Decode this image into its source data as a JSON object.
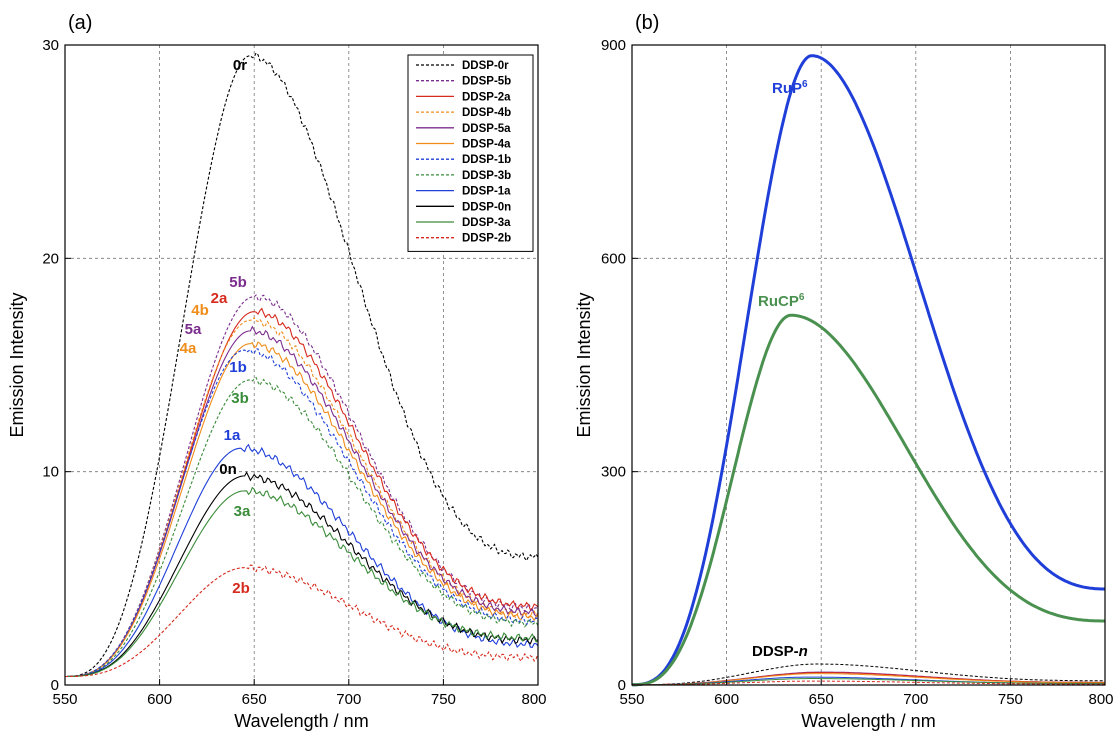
{
  "chart_data": [
    {
      "panel": "(a)",
      "type": "line",
      "xlabel": "Wavelength / nm",
      "ylabel": "Emission Intensity",
      "xlim": [
        550,
        800
      ],
      "ylim": [
        0,
        30
      ],
      "xticks": [
        550,
        600,
        650,
        700,
        750,
        800
      ],
      "yticks": [
        0,
        10,
        20,
        30
      ],
      "grid": true,
      "legend_position": "top-right",
      "series": [
        {
          "name": "DDSP-0r",
          "label": "0r",
          "color": "#000000",
          "dash": true,
          "peak_x": 648,
          "peak_y": 29.5,
          "end_y": 6.0
        },
        {
          "name": "DDSP-5b",
          "label": "5b",
          "color": "#7b2d8e",
          "dash": true,
          "peak_x": 650,
          "peak_y": 18.2,
          "end_y": 3.6
        },
        {
          "name": "DDSP-2a",
          "label": "2a",
          "color": "#d62a1e",
          "dash": false,
          "peak_x": 650,
          "peak_y": 17.5,
          "end_y": 3.7
        },
        {
          "name": "DDSP-4b",
          "label": "4b",
          "color": "#f08c1a",
          "dash": true,
          "peak_x": 648,
          "peak_y": 17.1,
          "end_y": 3.3
        },
        {
          "name": "DDSP-5a",
          "label": "5a",
          "color": "#7b2d8e",
          "dash": false,
          "peak_x": 648,
          "peak_y": 16.6,
          "end_y": 3.4
        },
        {
          "name": "DDSP-4a",
          "label": "4a",
          "color": "#f08c1a",
          "dash": false,
          "peak_x": 648,
          "peak_y": 16.0,
          "end_y": 3.2
        },
        {
          "name": "DDSP-1b",
          "label": "1b",
          "color": "#1f3fd8",
          "dash": true,
          "peak_x": 645,
          "peak_y": 15.7,
          "end_y": 3.0
        },
        {
          "name": "DDSP-3b",
          "label": "3b",
          "color": "#3a8c3a",
          "dash": true,
          "peak_x": 648,
          "peak_y": 14.3,
          "end_y": 2.9
        },
        {
          "name": "DDSP-1a",
          "label": "1a",
          "color": "#1f3fd8",
          "dash": false,
          "peak_x": 643,
          "peak_y": 11.1,
          "end_y": 1.9
        },
        {
          "name": "DDSP-0n",
          "label": "0n",
          "color": "#000000",
          "dash": false,
          "peak_x": 645,
          "peak_y": 9.8,
          "end_y": 2.1
        },
        {
          "name": "DDSP-3a",
          "label": "3a",
          "color": "#3a8c3a",
          "dash": false,
          "peak_x": 645,
          "peak_y": 9.1,
          "end_y": 2.2
        },
        {
          "name": "DDSP-2b",
          "label": "2b",
          "color": "#d62a1e",
          "dash": true,
          "peak_x": 645,
          "peak_y": 5.5,
          "end_y": 1.3
        }
      ]
    },
    {
      "panel": "(b)",
      "type": "line",
      "xlabel": "Wavelength / nm",
      "ylabel": "Emission Intensity",
      "xlim": [
        550,
        800
      ],
      "ylim": [
        0,
        900
      ],
      "xticks": [
        550,
        600,
        650,
        700,
        750,
        800
      ],
      "yticks": [
        0,
        300,
        600,
        900
      ],
      "grid": true,
      "series": [
        {
          "label": "RuP",
          "sup": "6",
          "color": "#1f3fd8",
          "dash": false,
          "width": 3,
          "peak_x": 645,
          "peak_y": 885,
          "end_y": 135
        },
        {
          "label": "RuCP",
          "sup": "6",
          "color": "#4a9150",
          "dash": false,
          "width": 3,
          "peak_x": 634,
          "peak_y": 520,
          "end_y": 90
        },
        {
          "label": "DDSP-n",
          "color": "#000000",
          "dash": true,
          "width": 1,
          "peak_x": 648,
          "peak_y": 29.5,
          "end_y": 6.0
        },
        {
          "color": "#7b2d8e",
          "dash": false,
          "width": 1,
          "peak_x": 650,
          "peak_y": 18.2,
          "end_y": 3.6
        },
        {
          "color": "#d62a1e",
          "dash": false,
          "width": 1,
          "peak_x": 650,
          "peak_y": 17.5,
          "end_y": 3.7
        },
        {
          "color": "#f08c1a",
          "dash": false,
          "width": 1,
          "peak_x": 648,
          "peak_y": 16.0,
          "end_y": 3.2
        },
        {
          "color": "#1f3fd8",
          "dash": false,
          "width": 1,
          "peak_x": 643,
          "peak_y": 11.1,
          "end_y": 1.9
        },
        {
          "color": "#3a8c3a",
          "dash": false,
          "width": 1,
          "peak_x": 645,
          "peak_y": 9.1,
          "end_y": 2.2
        },
        {
          "color": "#d62a1e",
          "dash": true,
          "width": 1,
          "peak_x": 645,
          "peak_y": 5.5,
          "end_y": 1.3
        }
      ]
    }
  ]
}
